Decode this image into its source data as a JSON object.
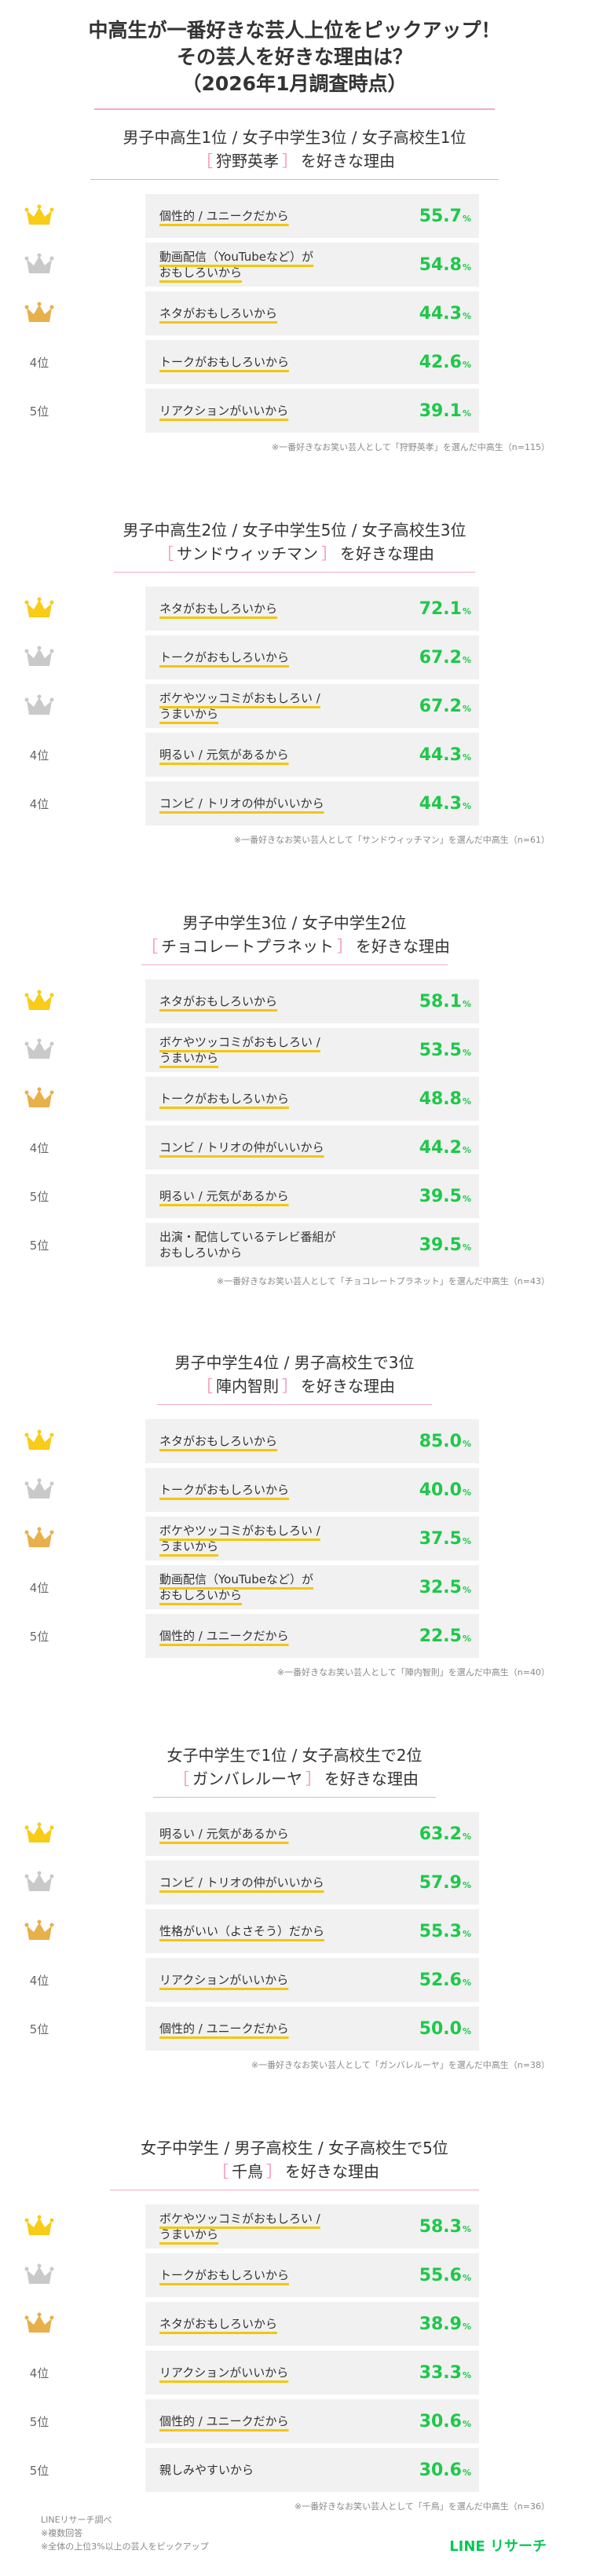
{
  "title": {
    "line1": "中高生が一番好きな芸人上位をピックアップ！",
    "line2": "その芸人を好きな理由は？",
    "line3": "（2026年1月調査時点）"
  },
  "colors": {
    "gold": "#f8cc17",
    "silver": "#c9c9c9",
    "bronze": "#e8b04a",
    "percent": "#1ec84a",
    "divider": "#f4a9c8",
    "underline": "#f3c60b",
    "brand": "#06c755"
  },
  "sections": [
    {
      "heading": "男子中高生1位 / 女子中学生3位 / 女子高校生1位",
      "bracket_open": "［",
      "name": "狩野英孝",
      "bracket_close": "］",
      "suffix": "を好きな理由",
      "note": "※一番好きなお笑い芸人として「狩野英孝」を選んだ中高生（n=115）"
    },
    {
      "heading": "男子中高生2位 / 女子中学生5位 / 女子高校生3位",
      "bracket_open": "［",
      "name": "サンドウィッチマン",
      "bracket_close": "］",
      "suffix": "を好きな理由",
      "note": "※一番好きなお笑い芸人として「サンドウィッチマン」を選んだ中高生（n=61）"
    },
    {
      "heading": "男子中学生3位 / 女子中学生2位",
      "bracket_open": "［",
      "name": "チョコレートプラネット",
      "bracket_close": "］",
      "suffix": "を好きな理由",
      "note": "※一番好きなお笑い芸人として「チョコレートプラネット」を選んだ中高生（n=43）"
    },
    {
      "heading": "男子中学生4位 / 男子高校生で3位",
      "bracket_open": "［",
      "name": "陣内智則",
      "bracket_close": "］",
      "suffix": "を好きな理由",
      "note": "※一番好きなお笑い芸人として「陣内智則」を選んだ中高生（n=40）"
    },
    {
      "heading": "女子中学生で1位 / 女子高校生で2位",
      "bracket_open": "［",
      "name": "ガンバレルーヤ",
      "bracket_close": "］",
      "suffix": "を好きな理由",
      "note": "※一番好きなお笑い芸人として「ガンバレルーヤ」を選んだ中高生（n=38）"
    },
    {
      "heading": "女子中学生 / 男子高校生 / 女子高校生で5位",
      "bracket_open": "［",
      "name": "千鳥",
      "bracket_close": "］",
      "suffix": "を好きな理由",
      "note": "※一番好きなお笑い芸人として「千鳥」を選んだ中高生（n=36）"
    }
  ],
  "chart_data": [
    {
      "type": "table",
      "title": "狩野英孝を好きな理由",
      "unit": "%",
      "rows": [
        {
          "rank": "1位",
          "medal": "gold",
          "reason": "個性的 / ユニークだから",
          "value": 55.7
        },
        {
          "rank": "2位",
          "medal": "silver",
          "reason": "動画配信（YouTubeなど）が\nおもしろいから",
          "value": 54.8
        },
        {
          "rank": "3位",
          "medal": "bronze",
          "reason": "ネタがおもしろいから",
          "value": 44.3
        },
        {
          "rank": "4位",
          "medal": "",
          "reason": "トークがおもしろいから",
          "value": 42.6
        },
        {
          "rank": "5位",
          "medal": "",
          "reason": "リアクションがいいから",
          "value": 39.1
        }
      ]
    },
    {
      "type": "table",
      "title": "サンドウィッチマンを好きな理由",
      "unit": "%",
      "rows": [
        {
          "rank": "1位",
          "medal": "gold",
          "reason": "ネタがおもしろいから",
          "value": 72.1
        },
        {
          "rank": "2位",
          "medal": "silver",
          "reason": "トークがおもしろいから",
          "value": 67.2
        },
        {
          "rank": "2位",
          "medal": "silver",
          "reason": "ボケやツッコミがおもしろい /\nうまいから",
          "value": 67.2
        },
        {
          "rank": "4位",
          "medal": "",
          "reason": "明るい / 元気があるから",
          "value": 44.3
        },
        {
          "rank": "4位",
          "medal": "",
          "reason": "コンビ / トリオの仲がいいから",
          "value": 44.3
        }
      ]
    },
    {
      "type": "table",
      "title": "チョコレートプラネットを好きな理由",
      "unit": "%",
      "rows": [
        {
          "rank": "1位",
          "medal": "gold",
          "reason": "ネタがおもしろいから",
          "value": 58.1
        },
        {
          "rank": "2位",
          "medal": "silver",
          "reason": "ボケやツッコミがおもしろい /\nうまいから",
          "value": 53.5
        },
        {
          "rank": "3位",
          "medal": "bronze",
          "reason": "トークがおもしろいから",
          "value": 48.8
        },
        {
          "rank": "4位",
          "medal": "",
          "reason": "コンビ / トリオの仲がいいから",
          "value": 44.2
        },
        {
          "rank": "5位",
          "medal": "",
          "reason": "明るい / 元気があるから",
          "value": 39.5
        },
        {
          "rank": "5位",
          "medal": "",
          "reason": "出演・配信しているテレビ番組が\nおもしろいから",
          "value": 39.5
        }
      ]
    },
    {
      "type": "table",
      "title": "陣内智則を好きな理由",
      "unit": "%",
      "rows": [
        {
          "rank": "1位",
          "medal": "gold",
          "reason": "ネタがおもしろいから",
          "value": 85.0
        },
        {
          "rank": "2位",
          "medal": "silver",
          "reason": "トークがおもしろいから",
          "value": 40.0
        },
        {
          "rank": "3位",
          "medal": "bronze",
          "reason": "ボケやツッコミがおもしろい /\nうまいから",
          "value": 37.5
        },
        {
          "rank": "4位",
          "medal": "",
          "reason": "動画配信（YouTubeなど）が\nおもしろいから",
          "value": 32.5
        },
        {
          "rank": "5位",
          "medal": "",
          "reason": "個性的 / ユニークだから",
          "value": 22.5
        }
      ]
    },
    {
      "type": "table",
      "title": "ガンバレルーヤを好きな理由",
      "unit": "%",
      "rows": [
        {
          "rank": "1位",
          "medal": "gold",
          "reason": "明るい / 元気があるから",
          "value": 63.2
        },
        {
          "rank": "2位",
          "medal": "silver",
          "reason": "コンビ / トリオの仲がいいから",
          "value": 57.9
        },
        {
          "rank": "3位",
          "medal": "bronze",
          "reason": "性格がいい（よさそう）だから",
          "value": 55.3
        },
        {
          "rank": "4位",
          "medal": "",
          "reason": "リアクションがいいから",
          "value": 52.6
        },
        {
          "rank": "5位",
          "medal": "",
          "reason": "個性的 / ユニークだから",
          "value": 50.0
        }
      ]
    },
    {
      "type": "table",
      "title": "千鳥を好きな理由",
      "unit": "%",
      "rows": [
        {
          "rank": "1位",
          "medal": "gold",
          "reason": "ボケやツッコミがおもしろい /\nうまいから",
          "value": 58.3
        },
        {
          "rank": "2位",
          "medal": "silver",
          "reason": "トークがおもしろいから",
          "value": 55.6
        },
        {
          "rank": "3位",
          "medal": "bronze",
          "reason": "ネタがおもしろいから",
          "value": 38.9
        },
        {
          "rank": "4位",
          "medal": "",
          "reason": "リアクションがいいから",
          "value": 33.3
        },
        {
          "rank": "5位",
          "medal": "",
          "reason": "個性的 / ユニークだから",
          "value": 30.6
        },
        {
          "rank": "5位",
          "medal": "",
          "reason": "親しみやすいから",
          "value": 30.6
        }
      ]
    }
  ],
  "footer": {
    "source": "LINEリサーチ調べ",
    "note1": "※複数回答",
    "note2": "※全体の上位3%以上の芸人をピックアップ",
    "brand": "LINE リサーチ"
  }
}
